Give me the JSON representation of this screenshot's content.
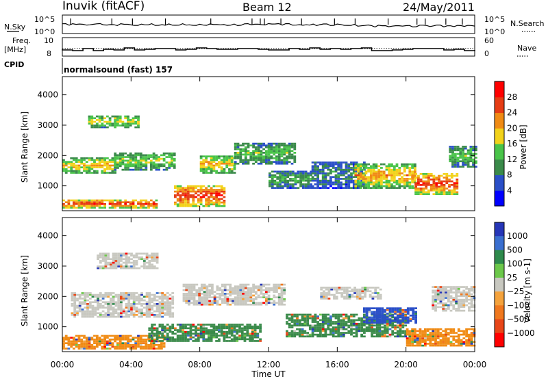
{
  "header": {
    "station": "Inuvik (fitACF)",
    "beam": "Beam 12",
    "date": "24/May/2011"
  },
  "side_labels": {
    "nsky": "N.Sky",
    "freq_line1": "Freq.",
    "freq_line2": "[MHz]",
    "cpid": "CPID",
    "nsearch": "N.Search",
    "nave": "Nave"
  },
  "cpid_text": "normalsound (fast) 157",
  "noise_axis": {
    "top": "10^5",
    "bottom": "10^0"
  },
  "freq_axis": {
    "left_ticks": [
      "10",
      "8"
    ],
    "right_ticks": [
      "60",
      "0"
    ]
  },
  "chart_data": [
    {
      "type": "heatmap",
      "name_panel": "power",
      "title": "",
      "xlabel": "Time UT",
      "ylabel": "Slant Range [km]",
      "colorbar_label": "Power [dB]",
      "x_ticks": [
        "00:00",
        "04:00",
        "08:00",
        "12:00",
        "16:00",
        "20:00",
        "00:00"
      ],
      "y_ticks": [
        1000,
        2000,
        3000,
        4000
      ],
      "xlim_hours": [
        0,
        24
      ],
      "ylim_km": [
        180,
        4600
      ],
      "colorbar_ticks": [
        4,
        8,
        12,
        16,
        20,
        24,
        28
      ],
      "colorbar_colors": [
        "#0000ff",
        "#2a4fc8",
        "#3a8a4a",
        "#49c449",
        "#f2d21a",
        "#f08b14",
        "#e63c14",
        "#ff0000"
      ],
      "bands": [
        {
          "t0": 0.0,
          "t1": 5.5,
          "km0": 250,
          "km1": 520,
          "level": 28
        },
        {
          "t0": 0.0,
          "t1": 3.0,
          "km0": 1400,
          "km1": 1900,
          "level": 20
        },
        {
          "t0": 1.5,
          "t1": 4.5,
          "km0": 2900,
          "km1": 3300,
          "level": 18
        },
        {
          "t0": 3.0,
          "t1": 6.5,
          "km0": 1500,
          "km1": 2100,
          "level": 16
        },
        {
          "t0": 6.5,
          "t1": 9.5,
          "km0": 300,
          "km1": 1000,
          "level": 28
        },
        {
          "t0": 8.0,
          "t1": 10.0,
          "km0": 1400,
          "km1": 2000,
          "level": 20
        },
        {
          "t0": 10.0,
          "t1": 13.5,
          "km0": 1700,
          "km1": 2400,
          "level": 14
        },
        {
          "t0": 12.0,
          "t1": 14.5,
          "km0": 900,
          "km1": 1500,
          "level": 12
        },
        {
          "t0": 14.5,
          "t1": 17.5,
          "km0": 900,
          "km1": 1800,
          "level": 10
        },
        {
          "t0": 17.0,
          "t1": 20.5,
          "km0": 900,
          "km1": 1700,
          "level": 22
        },
        {
          "t0": 20.5,
          "t1": 23.0,
          "km0": 700,
          "km1": 1400,
          "level": 28
        },
        {
          "t0": 22.5,
          "t1": 24.0,
          "km0": 1600,
          "km1": 2300,
          "level": 14
        }
      ]
    },
    {
      "type": "heatmap",
      "name_panel": "velocity",
      "title": "",
      "xlabel": "Time UT",
      "ylabel": "Slant Range [km]",
      "colorbar_label": "Velocity [m s-1]",
      "x_ticks": [
        "00:00",
        "04:00",
        "08:00",
        "12:00",
        "16:00",
        "20:00",
        "00:00"
      ],
      "y_ticks": [
        1000,
        2000,
        3000,
        4000
      ],
      "xlim_hours": [
        0,
        24
      ],
      "ylim_km": [
        180,
        4600
      ],
      "colorbar_ticks": [
        "1000",
        "500",
        "100",
        "25",
        "−25",
        "−100",
        "−500",
        "−1000"
      ],
      "colorbar_colors": [
        "#2636b8",
        "#3a6fd0",
        "#2e8a4c",
        "#6cc84a",
        "#c8c8c0",
        "#f4a23c",
        "#f0781e",
        "#e84618",
        "#ff0000"
      ],
      "bands": [
        {
          "t0": 0.0,
          "t1": 6.0,
          "km0": 250,
          "km1": 700,
          "color": "#f08b14"
        },
        {
          "t0": 0.5,
          "t1": 6.5,
          "km0": 1300,
          "km1": 2100,
          "color": "#c8c8c0"
        },
        {
          "t0": 2.0,
          "t1": 5.5,
          "km0": 2900,
          "km1": 3400,
          "color": "#c8c8c0"
        },
        {
          "t0": 5.0,
          "t1": 11.5,
          "km0": 500,
          "km1": 1100,
          "color": "#3a8a4a"
        },
        {
          "t0": 7.0,
          "t1": 13.0,
          "km0": 1700,
          "km1": 2400,
          "color": "#c8c8c0"
        },
        {
          "t0": 13.0,
          "t1": 20.0,
          "km0": 650,
          "km1": 1400,
          "color": "#3a8a4a"
        },
        {
          "t0": 17.5,
          "t1": 20.5,
          "km0": 1100,
          "km1": 1600,
          "color": "#2a4fc8"
        },
        {
          "t0": 15.0,
          "t1": 18.5,
          "km0": 1900,
          "km1": 2300,
          "color": "#c8c8c0"
        },
        {
          "t0": 20.0,
          "t1": 24.0,
          "km0": 350,
          "km1": 900,
          "color": "#f08b14"
        },
        {
          "t0": 21.5,
          "t1": 24.0,
          "km0": 1500,
          "km1": 2300,
          "color": "#c8c8c0"
        }
      ]
    }
  ]
}
